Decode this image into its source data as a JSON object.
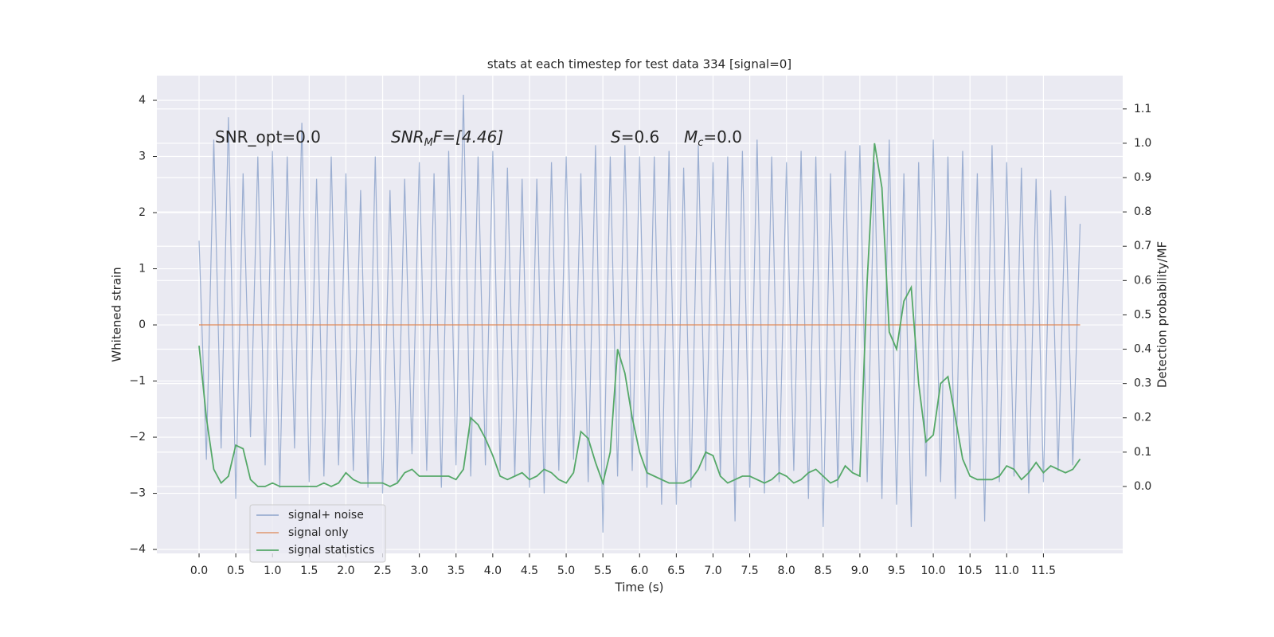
{
  "chart_data": {
    "type": "line",
    "title": "stats at each timestep for test data 334 [signal=0]",
    "xlabel": "Time (s)",
    "ylabel": "Whitened strain",
    "y2label": "Detection probability/MF",
    "annotations": [
      {
        "main": "SNR_opt=0.0"
      },
      {
        "main": "SNR",
        "sub": "M",
        "rest": "F=[4.46]"
      },
      {
        "main": "S",
        "rest": "=0.6"
      },
      {
        "main": "M",
        "sub": "c",
        "rest": "=0.0"
      }
    ],
    "x": [
      0,
      0.1,
      0.2,
      0.3,
      0.4,
      0.5,
      0.6,
      0.7,
      0.8,
      0.9,
      1,
      1.1,
      1.2,
      1.3,
      1.4,
      1.5,
      1.6,
      1.7,
      1.8,
      1.9,
      2,
      2.1,
      2.2,
      2.3,
      2.4,
      2.5,
      2.6,
      2.7,
      2.8,
      2.9,
      3,
      3.1,
      3.2,
      3.3,
      3.4,
      3.5,
      3.6,
      3.7,
      3.8,
      3.9,
      4,
      4.1,
      4.2,
      4.3,
      4.4,
      4.5,
      4.6,
      4.7,
      4.8,
      4.9,
      5,
      5.1,
      5.2,
      5.3,
      5.4,
      5.5,
      5.6,
      5.7,
      5.8,
      5.9,
      6,
      6.1,
      6.2,
      6.3,
      6.4,
      6.5,
      6.6,
      6.7,
      6.8,
      6.9,
      7,
      7.1,
      7.2,
      7.3,
      7.4,
      7.5,
      7.6,
      7.7,
      7.8,
      7.9,
      8,
      8.1,
      8.2,
      8.3,
      8.4,
      8.5,
      8.6,
      8.7,
      8.8,
      8.9,
      9,
      9.1,
      9.2,
      9.3,
      9.4,
      9.5,
      9.6,
      9.7,
      9.8,
      9.9,
      10,
      10.1,
      10.2,
      10.3,
      10.4,
      10.5,
      10.6,
      10.7,
      10.8,
      10.9,
      11,
      11.1,
      11.2,
      11.3,
      11.4,
      11.5,
      11.6,
      11.7,
      11.8,
      11.9,
      12
    ],
    "series": [
      {
        "name": "signal+ noise",
        "color": "#4c72b0",
        "opacity": 0.5,
        "values": [
          1.5,
          -2.4,
          3.3,
          -2.2,
          3.7,
          -3.1,
          2.7,
          -2.0,
          3.0,
          -2.5,
          3.1,
          -2.9,
          3.0,
          -2.2,
          3.6,
          -2.8,
          2.6,
          -2.7,
          3.0,
          -2.5,
          2.7,
          -2.6,
          2.4,
          -2.9,
          3.0,
          -3.0,
          2.4,
          -2.8,
          2.6,
          -2.3,
          2.9,
          -2.6,
          2.7,
          -2.9,
          3.1,
          -2.5,
          4.1,
          -2.7,
          3.0,
          -2.5,
          3.1,
          -2.6,
          2.8,
          -2.7,
          2.6,
          -2.9,
          2.6,
          -3.0,
          2.9,
          -2.6,
          3.0,
          -2.4,
          2.7,
          -2.8,
          3.2,
          -3.7,
          3.0,
          -2.7,
          3.2,
          -2.6,
          3.0,
          -2.9,
          3.0,
          -3.2,
          3.1,
          -3.2,
          2.8,
          -2.9,
          3.2,
          -2.6,
          2.9,
          -2.7,
          3.0,
          -3.5,
          3.1,
          -2.9,
          3.3,
          -3.0,
          3.0,
          -2.8,
          2.9,
          -2.6,
          3.1,
          -3.1,
          3.0,
          -3.6,
          2.7,
          -2.9,
          3.1,
          -2.6,
          3.2,
          -2.8,
          2.9,
          -3.1,
          3.3,
          -3.2,
          2.7,
          -3.6,
          2.9,
          -2.7,
          3.3,
          -2.8,
          3.0,
          -3.1,
          3.1,
          -2.6,
          2.7,
          -3.5,
          3.2,
          -2.8,
          2.9,
          -2.7,
          2.8,
          -3.0,
          2.6,
          -2.8,
          2.4,
          -2.6,
          2.3,
          -2.5,
          1.8
        ]
      },
      {
        "name": "signal only",
        "color": "#dd8452",
        "opacity": 0.7,
        "values": [
          0,
          0,
          0,
          0,
          0,
          0,
          0,
          0,
          0,
          0,
          0,
          0,
          0,
          0,
          0,
          0,
          0,
          0,
          0,
          0,
          0,
          0,
          0,
          0,
          0,
          0,
          0,
          0,
          0,
          0,
          0,
          0,
          0,
          0,
          0,
          0,
          0,
          0,
          0,
          0,
          0,
          0,
          0,
          0,
          0,
          0,
          0,
          0,
          0,
          0,
          0,
          0,
          0,
          0,
          0,
          0,
          0,
          0,
          0,
          0,
          0,
          0,
          0,
          0,
          0,
          0,
          0,
          0,
          0,
          0,
          0,
          0,
          0,
          0,
          0,
          0,
          0,
          0,
          0,
          0,
          0,
          0,
          0,
          0,
          0,
          0,
          0,
          0,
          0,
          0,
          0,
          0,
          0,
          0,
          0,
          0,
          0,
          0,
          0,
          0,
          0,
          0,
          0,
          0,
          0,
          0,
          0,
          0,
          0,
          0,
          0,
          0,
          0,
          0,
          0,
          0,
          0,
          0,
          0,
          0,
          0
        ]
      },
      {
        "name": "signal statistics",
        "color": "#55a868",
        "opacity": 1,
        "axis": "y2",
        "values": [
          0.41,
          0.2,
          0.05,
          0.01,
          0.03,
          0.12,
          0.11,
          0.02,
          0.0,
          0.0,
          0.01,
          0.0,
          0.0,
          0.0,
          0.0,
          0.0,
          0.0,
          0.01,
          0.0,
          0.01,
          0.04,
          0.02,
          0.01,
          0.01,
          0.01,
          0.01,
          0.0,
          0.01,
          0.04,
          0.05,
          0.03,
          0.03,
          0.03,
          0.03,
          0.03,
          0.02,
          0.05,
          0.2,
          0.18,
          0.14,
          0.09,
          0.03,
          0.02,
          0.03,
          0.04,
          0.02,
          0.03,
          0.05,
          0.04,
          0.02,
          0.01,
          0.04,
          0.16,
          0.14,
          0.07,
          0.01,
          0.1,
          0.4,
          0.33,
          0.2,
          0.1,
          0.04,
          0.03,
          0.02,
          0.01,
          0.01,
          0.01,
          0.02,
          0.05,
          0.1,
          0.09,
          0.03,
          0.01,
          0.02,
          0.03,
          0.03,
          0.02,
          0.01,
          0.02,
          0.04,
          0.03,
          0.01,
          0.02,
          0.04,
          0.05,
          0.03,
          0.01,
          0.02,
          0.06,
          0.04,
          0.03,
          0.6,
          1.0,
          0.87,
          0.45,
          0.4,
          0.54,
          0.58,
          0.3,
          0.13,
          0.15,
          0.3,
          0.32,
          0.2,
          0.08,
          0.03,
          0.02,
          0.02,
          0.02,
          0.03,
          0.06,
          0.05,
          0.02,
          0.04,
          0.07,
          0.04,
          0.06,
          0.05,
          0.04,
          0.05,
          0.08
        ]
      }
    ],
    "xlim": [
      -0.575,
      12.58
    ],
    "ylim": [
      -4.07,
      4.44
    ],
    "y2lim": [
      -0.195,
      1.197
    ],
    "xticks": [
      {
        "value": 0,
        "label": "0.0"
      },
      0.5,
      {
        "value": 1,
        "label": "1.0"
      },
      1.5,
      {
        "value": 2,
        "label": "2.0"
      },
      2.5,
      {
        "value": 3,
        "label": "3.0"
      },
      3.5,
      {
        "value": 4,
        "label": "4.0"
      },
      4.5,
      {
        "value": 5,
        "label": "5.0"
      },
      5.5,
      {
        "value": 6,
        "label": "6.0"
      },
      6.5,
      {
        "value": 7,
        "label": "7.0"
      },
      7.5,
      {
        "value": 8,
        "label": "8.0"
      },
      8.5,
      {
        "value": 9,
        "label": "9.0"
      },
      9.5,
      {
        "value": 10,
        "label": "10.0"
      },
      10.5,
      {
        "value": 11,
        "label": "11.0"
      },
      11.5
    ],
    "yticks": [
      {
        "value": -4,
        "label": "−4"
      },
      {
        "value": -3,
        "label": "−3"
      },
      {
        "value": -2,
        "label": "−2"
      },
      {
        "value": -1,
        "label": "−1"
      },
      0,
      1,
      2,
      3,
      4
    ],
    "y2ticks": [
      {
        "value": 0,
        "label": "0.0"
      },
      0.1,
      0.2,
      0.3,
      0.4,
      0.5,
      0.6,
      0.7,
      0.8,
      0.9,
      {
        "value": 1,
        "label": "1.0"
      },
      1.1
    ],
    "grid": true,
    "legend": "lower left"
  }
}
